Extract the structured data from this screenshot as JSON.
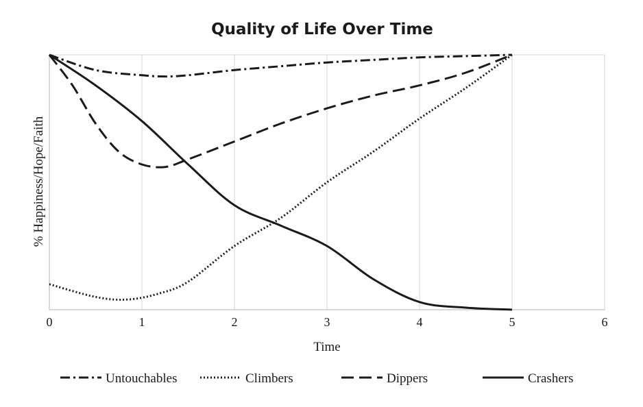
{
  "chart_data": {
    "type": "line",
    "title": "Quality of Life Over Time",
    "xlabel": "Time",
    "ylabel": "% Happiness/Hope/Faith",
    "xlim": [
      0,
      6
    ],
    "ylim": [
      0,
      100
    ],
    "x_ticks": [
      0,
      1,
      2,
      3,
      4,
      5,
      6
    ],
    "x_tick_labels": [
      "0",
      "1",
      "2",
      "3",
      "4",
      "5",
      "6"
    ],
    "grid": "vertical",
    "legend_position": "bottom",
    "series": [
      {
        "name": "Untouchables",
        "style": "dash-dot",
        "x": [
          0,
          0.5,
          1,
          1.25,
          1.5,
          2,
          2.5,
          3,
          3.5,
          4,
          4.5,
          5
        ],
        "y": [
          100,
          94,
          92,
          91.5,
          92,
          94,
          95.5,
          97,
          98,
          99,
          99.5,
          100
        ]
      },
      {
        "name": "Climbers",
        "style": "dotted",
        "x": [
          0,
          0.5,
          0.85,
          1.2,
          1.5,
          2,
          2.5,
          3,
          3.5,
          4,
          4.5,
          5
        ],
        "y": [
          10,
          5,
          4,
          6.5,
          11,
          25,
          36,
          50,
          62,
          75,
          87,
          100
        ]
      },
      {
        "name": "Dippers",
        "style": "dashed",
        "x": [
          0,
          0.25,
          0.5,
          0.75,
          1,
          1.25,
          1.5,
          2,
          2.5,
          3,
          3.5,
          4,
          4.5,
          5
        ],
        "y": [
          100,
          88,
          73,
          62,
          57,
          56,
          59,
          66,
          73,
          79,
          84,
          88,
          93,
          100
        ]
      },
      {
        "name": "Crashers",
        "style": "solid",
        "x": [
          0,
          0.5,
          1,
          1.5,
          2,
          2.5,
          3,
          3.5,
          4,
          4.5,
          5
        ],
        "y": [
          100,
          88,
          74,
          57,
          41,
          33,
          25,
          12,
          3,
          0.8,
          0
        ]
      }
    ]
  }
}
